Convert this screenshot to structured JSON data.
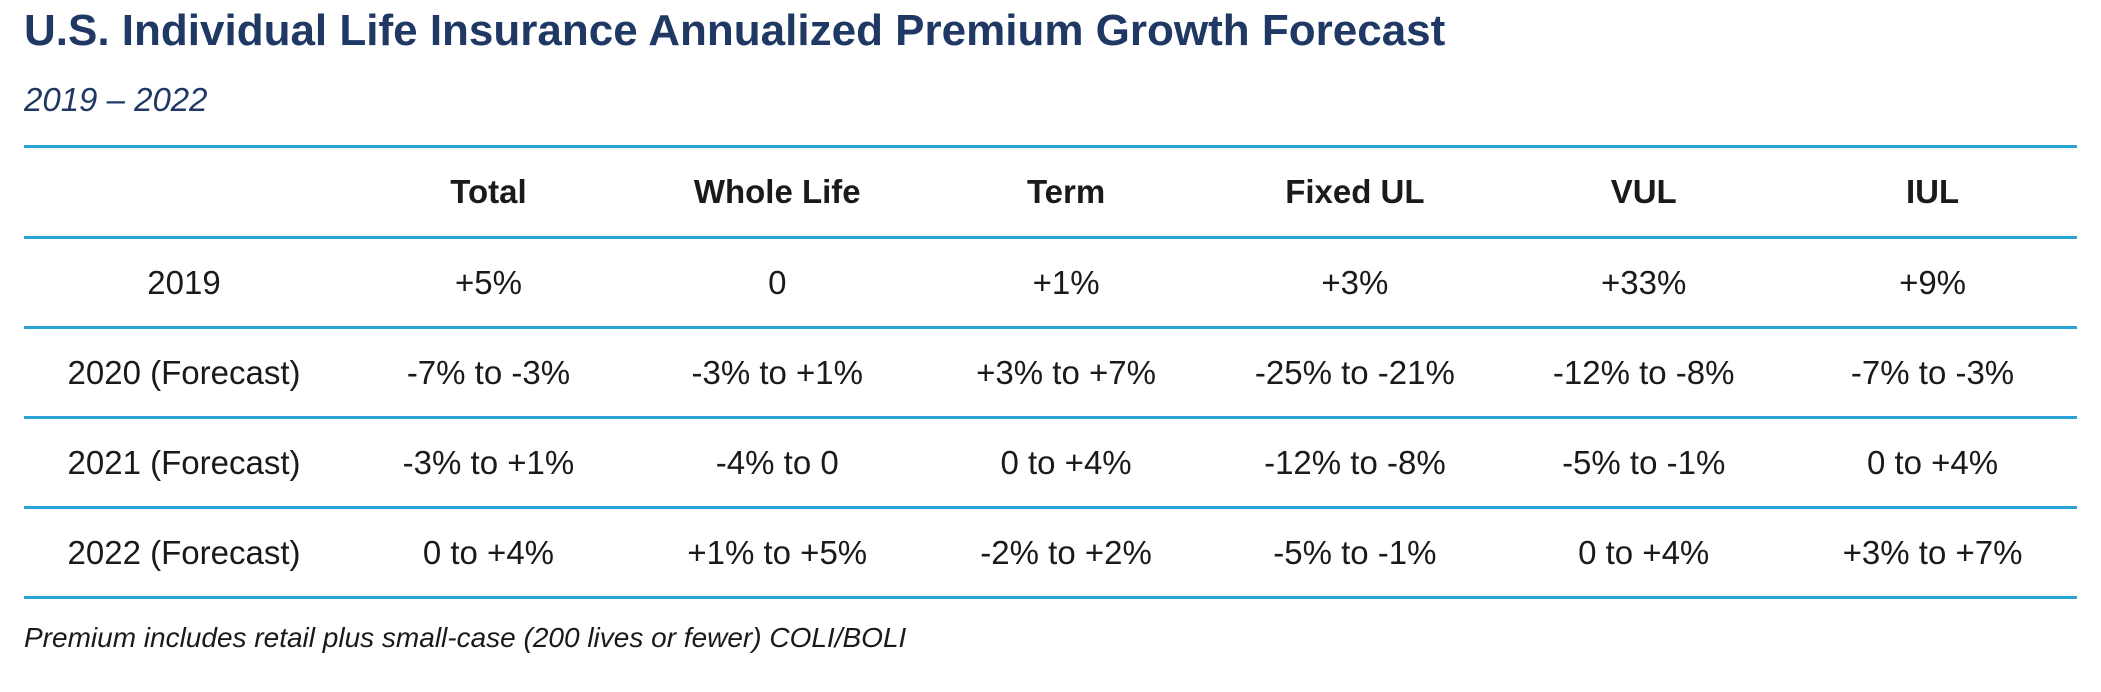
{
  "title": "U.S. Individual Life Insurance Annualized Premium Growth Forecast",
  "subtitle": "2019 – 2022",
  "table": {
    "headers": [
      "",
      "Total",
      "Whole Life",
      "Term",
      "Fixed UL",
      "VUL",
      "IUL"
    ],
    "rows": [
      [
        "2019",
        "+5%",
        "0",
        "+1%",
        "+3%",
        "+33%",
        "+9%"
      ],
      [
        "2020 (Forecast)",
        "-7% to -3%",
        "-3% to +1%",
        "+3% to +7%",
        "-25% to -21%",
        "-12% to -8%",
        "-7% to -3%"
      ],
      [
        "2021 (Forecast)",
        "-3% to +1%",
        "-4% to 0",
        "0 to +4%",
        "-12% to -8%",
        "-5% to -1%",
        "0 to +4%"
      ],
      [
        "2022 (Forecast)",
        "0 to +4%",
        "+1% to +5%",
        "-2% to +2%",
        "-5% to -1%",
        "0 to +4%",
        "+3% to +7%"
      ]
    ]
  },
  "footnote": "Premium includes retail plus small-case (200 lives or fewer) COLI/BOLI",
  "colors": {
    "title": "#1f3864",
    "rule": "#29a3d8",
    "text": "#1a1a1a"
  }
}
